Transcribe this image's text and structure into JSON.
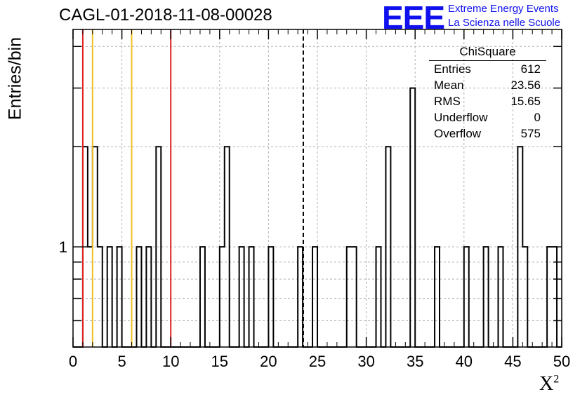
{
  "header": {
    "title": "CAGL-01-2018-11-08-00028",
    "logo_text": "EEE",
    "logo_line1": "Extreme Energy Events",
    "logo_line2": "La Scienza nelle Scuole",
    "logo_color": "#1010ee"
  },
  "stats": {
    "title": "ChiSquare",
    "rows": [
      {
        "label": "Entries",
        "value": "612"
      },
      {
        "label": "Mean",
        "value": "23.56"
      },
      {
        "label": "RMS",
        "value": "15.65"
      },
      {
        "label": "Underflow",
        "value": "0"
      },
      {
        "label": "Overflow",
        "value": "575"
      }
    ]
  },
  "chart_data": {
    "type": "bar",
    "style": "step-histogram",
    "title": "CAGL-01-2018-11-08-00028",
    "xlabel": "X",
    "xlabel_superscript": "2",
    "ylabel": "Entries/bin",
    "xlim": [
      0,
      50
    ],
    "ylog": true,
    "ylim": [
      0.5,
      4.5
    ],
    "grid": true,
    "bin_width": 0.5,
    "x_ticks": [
      0,
      5,
      10,
      15,
      20,
      25,
      30,
      35,
      40,
      45,
      50
    ],
    "y_tick_labels": [
      {
        "value": 1,
        "label": "1"
      }
    ],
    "bins": [
      {
        "x": 1.0,
        "count": 2
      },
      {
        "x": 1.5,
        "count": 1
      },
      {
        "x": 2.0,
        "count": 2
      },
      {
        "x": 2.5,
        "count": 1
      },
      {
        "x": 3.5,
        "count": 1
      },
      {
        "x": 4.5,
        "count": 1
      },
      {
        "x": 6.5,
        "count": 1
      },
      {
        "x": 7.5,
        "count": 1
      },
      {
        "x": 8.5,
        "count": 2
      },
      {
        "x": 13.0,
        "count": 1
      },
      {
        "x": 15.0,
        "count": 1
      },
      {
        "x": 15.5,
        "count": 2
      },
      {
        "x": 17.0,
        "count": 1
      },
      {
        "x": 18.0,
        "count": 1
      },
      {
        "x": 20.0,
        "count": 1
      },
      {
        "x": 23.0,
        "count": 1
      },
      {
        "x": 24.5,
        "count": 1
      },
      {
        "x": 28.0,
        "count": 1
      },
      {
        "x": 28.5,
        "count": 1
      },
      {
        "x": 31.0,
        "count": 1
      },
      {
        "x": 32.0,
        "count": 2
      },
      {
        "x": 34.5,
        "count": 3
      },
      {
        "x": 37.0,
        "count": 1
      },
      {
        "x": 40.0,
        "count": 1
      },
      {
        "x": 42.0,
        "count": 1
      },
      {
        "x": 43.5,
        "count": 1
      },
      {
        "x": 45.5,
        "count": 2
      },
      {
        "x": 46.0,
        "count": 1
      },
      {
        "x": 48.5,
        "count": 1
      },
      {
        "x": 49.0,
        "count": 1
      }
    ],
    "vertical_lines": [
      {
        "x": 1.0,
        "color": "#e02020",
        "style": "solid"
      },
      {
        "x": 2.0,
        "color": "#f0c020",
        "style": "solid"
      },
      {
        "x": 6.0,
        "color": "#f0c020",
        "style": "solid"
      },
      {
        "x": 10.0,
        "color": "#e02020",
        "style": "solid"
      },
      {
        "x": 23.56,
        "color": "#000000",
        "style": "dashed"
      }
    ]
  }
}
